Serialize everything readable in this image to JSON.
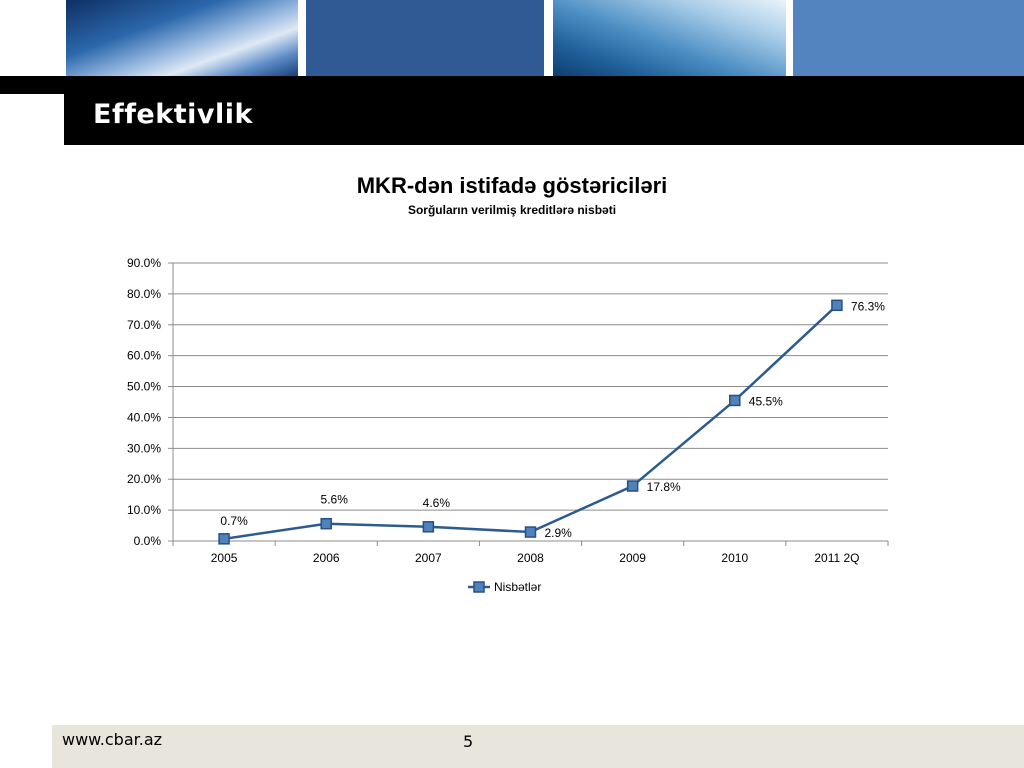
{
  "slide": {
    "title": "Effektivlik",
    "footer_url": "www.cbar.az",
    "page_number": "5"
  },
  "colors": {
    "series_line": "#2e5b8e",
    "marker_fill": "#4f81bd",
    "marker_stroke": "#2a4f80",
    "gridline": "#8c8c8c",
    "title_bar": "#000000",
    "footer_bg": "#e8e6dc"
  },
  "chart_data": {
    "type": "line",
    "title": "MKR-dən istifadə göstəriciləri",
    "subtitle": "Sorğuların verilmiş kreditlərə nisbəti",
    "categories": [
      "2005",
      "2006",
      "2007",
      "2008",
      "2009",
      "2010",
      "2011 2Q"
    ],
    "series": [
      {
        "name": "Nisbətlər",
        "values": [
          0.7,
          5.6,
          4.6,
          2.9,
          17.8,
          45.5,
          76.3
        ],
        "labels": [
          "0.7%",
          "5.6%",
          "4.6%",
          "2.9%",
          "17.8%",
          "45.5%",
          "76.3%"
        ]
      }
    ],
    "y_ticks": [
      "0.0%",
      "10.0%",
      "20.0%",
      "30.0%",
      "40.0%",
      "50.0%",
      "60.0%",
      "70.0%",
      "80.0%",
      "90.0%"
    ],
    "ylim": [
      0,
      90
    ],
    "grid": true,
    "legend_position": "bottom"
  }
}
